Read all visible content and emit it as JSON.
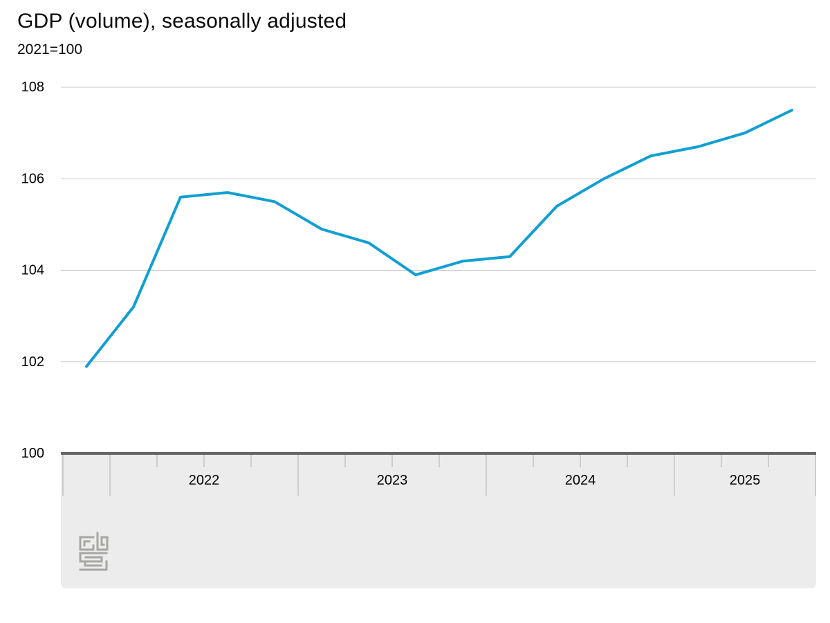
{
  "header": {
    "title": "GDP (volume), seasonally adjusted",
    "subtitle": "2021=100"
  },
  "chart_data": {
    "type": "line",
    "title": "GDP (volume), seasonally adjusted",
    "subtitle": "2021=100",
    "x": [
      "2021 Q4",
      "2022 Q1",
      "2022 Q2",
      "2022 Q3",
      "2022 Q4",
      "2023 Q1",
      "2023 Q2",
      "2023 Q3",
      "2023 Q4",
      "2024 Q1",
      "2024 Q2",
      "2024 Q3",
      "2024 Q4",
      "2025 Q1",
      "2025 Q2",
      "2025 Q3"
    ],
    "series": [
      {
        "name": "GDP volume, seasonally adjusted",
        "values": [
          101.9,
          103.2,
          105.6,
          105.7,
          105.5,
          104.9,
          104.6,
          103.9,
          104.2,
          104.3,
          105.4,
          106.0,
          106.5,
          106.7,
          107.0,
          107.5
        ]
      }
    ],
    "ylim": [
      100,
      108
    ],
    "yticks": [
      100,
      102,
      104,
      106,
      108
    ],
    "year_labels": [
      "2022",
      "2023",
      "2024",
      "2025"
    ],
    "grid": "horizontal-only",
    "legend": "none",
    "line_color": "#119fd3"
  },
  "colors": {
    "line": "#119fd3",
    "gridline": "#c9c9c9",
    "axis_bar": "#656565",
    "tick": "#c3c3c3",
    "panel": "#ececec",
    "text": "#000000",
    "logo": "#a6a6a4"
  },
  "logo": {
    "name": "cbs-logo"
  }
}
